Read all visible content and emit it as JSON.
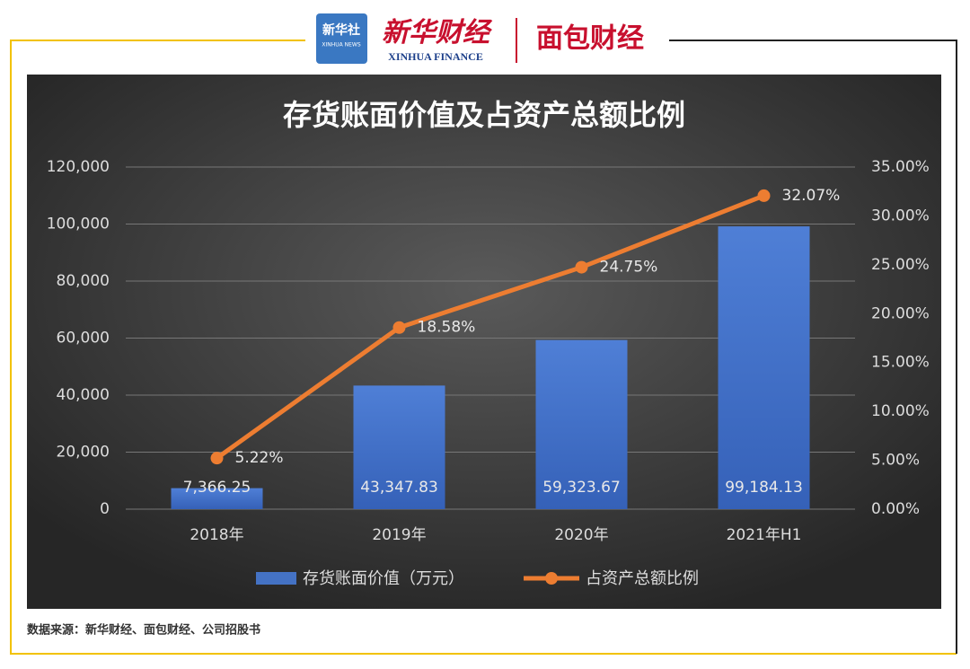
{
  "header": {
    "logo_cn": "新华社",
    "logo_en": "XINHUA NEWS",
    "brand_cn": "新华财经",
    "brand_en": "XINHUA FINANCE",
    "partner": "面包财经"
  },
  "source": "数据来源：新华财经、面包财经、公司招股书",
  "chart_data": {
    "type": "bar_line",
    "title": "存货账面价值及占资产总额比例",
    "categories": [
      "2018年",
      "2019年",
      "2020年",
      "2021年H1"
    ],
    "series": [
      {
        "name": "存货账面价值（万元）",
        "type": "bar",
        "color": "#4472c4",
        "axis": "y",
        "values": [
          7366.25,
          43347.83,
          59323.67,
          99184.13
        ],
        "value_labels": [
          "7,366.25",
          "43,347.83",
          "59,323.67",
          "99,184.13"
        ]
      },
      {
        "name": "占资产总额比例",
        "type": "line",
        "color": "#ed7d31",
        "axis": "y2",
        "values": [
          5.22,
          18.58,
          24.75,
          32.07
        ],
        "value_labels": [
          "5.22%",
          "18.58%",
          "24.75%",
          "32.07%"
        ]
      }
    ],
    "ylim": [
      0,
      120000
    ],
    "yticks": [
      0,
      {
        "value": 20000,
        "label": "20,000"
      },
      {
        "value": 40000,
        "label": "40,000"
      },
      {
        "value": 60000,
        "label": "60,000"
      },
      {
        "value": 80000,
        "label": "80,000"
      },
      {
        "value": 100000,
        "label": "100,000"
      },
      {
        "value": 120000,
        "label": "120,000"
      }
    ],
    "y2lim": [
      0,
      35
    ],
    "y2ticks": [
      {
        "value": 0,
        "label": "0.00%"
      },
      {
        "value": 5,
        "label": "5.00%"
      },
      {
        "value": 10,
        "label": "10.00%"
      },
      {
        "value": 15,
        "label": "15.00%"
      },
      {
        "value": 20,
        "label": "20.00%"
      },
      {
        "value": 25,
        "label": "25.00%"
      },
      {
        "value": 30,
        "label": "30.00%"
      },
      {
        "value": 35,
        "label": "35.00%"
      }
    ],
    "grid": true,
    "legend": "bottom"
  }
}
